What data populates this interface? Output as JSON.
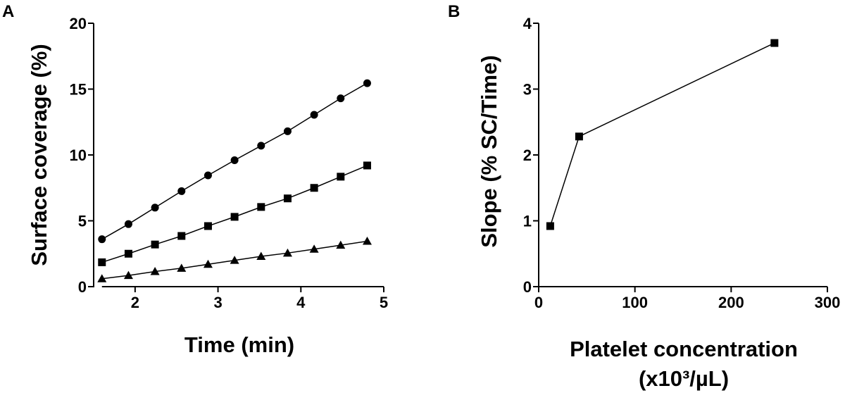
{
  "chart_data": [
    {
      "panel": "A",
      "type": "scatter",
      "title": "",
      "xlabel": "Time (min)",
      "ylabel": "Surface coverage (%)",
      "xlim": [
        1.5,
        5
      ],
      "ylim": [
        0,
        20
      ],
      "xticks": [
        2,
        3,
        4,
        5
      ],
      "yticks": [
        0,
        5,
        10,
        15,
        20
      ],
      "grid": false,
      "legend": "none",
      "series": [
        {
          "name": "circle series",
          "marker": "circle",
          "x": [
            1.6,
            1.92,
            2.24,
            2.56,
            2.88,
            3.2,
            3.52,
            3.84,
            4.16,
            4.48,
            4.8
          ],
          "y": [
            3.6,
            4.75,
            6.0,
            7.25,
            8.45,
            9.6,
            10.7,
            11.8,
            13.05,
            14.3,
            15.45
          ]
        },
        {
          "name": "square series",
          "marker": "square",
          "x": [
            1.6,
            1.92,
            2.24,
            2.56,
            2.88,
            3.2,
            3.52,
            3.84,
            4.16,
            4.48,
            4.8
          ],
          "y": [
            1.85,
            2.5,
            3.2,
            3.85,
            4.6,
            5.3,
            6.05,
            6.7,
            7.5,
            8.35,
            9.2
          ]
        },
        {
          "name": "triangle series",
          "marker": "triangle",
          "x": [
            1.6,
            1.92,
            2.24,
            2.56,
            2.88,
            3.2,
            3.52,
            3.84,
            4.16,
            4.48,
            4.8
          ],
          "y": [
            0.6,
            0.85,
            1.15,
            1.4,
            1.7,
            2.0,
            2.3,
            2.55,
            2.85,
            3.15,
            3.45
          ]
        }
      ]
    },
    {
      "panel": "B",
      "type": "line",
      "title": "",
      "xlabel_line1": "Platelet concentration",
      "xlabel_line2": "(x10³/µL)",
      "ylabel": "Slope (% SC/Time)",
      "xlim": [
        0,
        300
      ],
      "ylim": [
        0,
        4
      ],
      "xticks": [
        0,
        100,
        200,
        300
      ],
      "yticks": [
        0,
        1,
        2,
        3,
        4
      ],
      "grid": false,
      "legend": "none",
      "series": [
        {
          "name": "slope",
          "marker": "square",
          "x": [
            12,
            42,
            245
          ],
          "y": [
            0.92,
            2.28,
            3.7
          ]
        }
      ]
    }
  ]
}
